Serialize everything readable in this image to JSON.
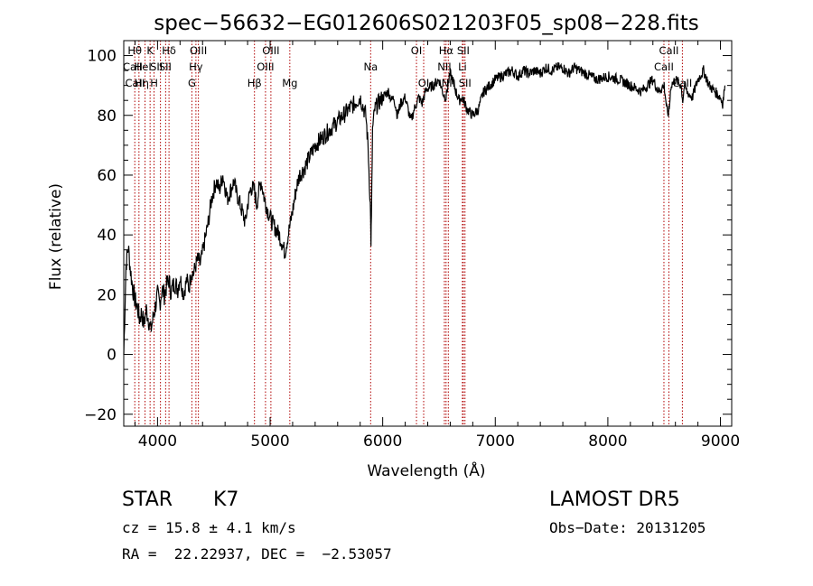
{
  "chart_data": {
    "type": "line",
    "title": "spec−56632−EG012606S021203F05_sp08−228.fits",
    "xlabel": "Wavelength (Å)",
    "ylabel": "Flux (relative)",
    "xlim": [
      3700,
      9100
    ],
    "ylim": [
      -24,
      105
    ],
    "xticks": [
      4000,
      5000,
      6000,
      7000,
      8000,
      9000
    ],
    "yticks": [
      -20,
      0,
      20,
      40,
      60,
      80,
      100
    ],
    "grid": false,
    "series": [
      {
        "x": [
          3700,
          3720,
          3740,
          3760,
          3780,
          3800,
          3820,
          3840,
          3860,
          3880,
          3900,
          3920,
          3940,
          3960,
          3980,
          4000,
          4020,
          4040,
          4060,
          4080,
          4100,
          4120,
          4150,
          4180,
          4200,
          4230,
          4260,
          4280,
          4300,
          4320,
          4340,
          4360,
          4380,
          4400,
          4420,
          4450,
          4480,
          4500,
          4520,
          4550,
          4580,
          4600,
          4620,
          4650,
          4680,
          4700,
          4720,
          4750,
          4780,
          4800,
          4830,
          4860,
          4880,
          4900,
          4920,
          4950,
          4980,
          5000,
          5020,
          5050,
          5080,
          5100,
          5130,
          5160,
          5180,
          5200,
          5230,
          5260,
          5300,
          5350,
          5400,
          5450,
          5500,
          5550,
          5600,
          5650,
          5700,
          5750,
          5800,
          5850,
          5870,
          5890,
          5896,
          5900,
          5910,
          5930,
          5960,
          6000,
          6050,
          6080,
          6100,
          6130,
          6160,
          6200,
          6250,
          6280,
          6300,
          6320,
          6350,
          6380,
          6400,
          6450,
          6500,
          6540,
          6563,
          6580,
          6600,
          6620,
          6650,
          6680,
          6700,
          6720,
          6750,
          6800,
          6850,
          6880,
          6900,
          6950,
          7000,
          7050,
          7100,
          7150,
          7200,
          7250,
          7300,
          7350,
          7400,
          7450,
          7500,
          7550,
          7600,
          7650,
          7700,
          7800,
          7900,
          8000,
          8100,
          8200,
          8300,
          8400,
          8450,
          8500,
          8530,
          8545,
          8560,
          8600,
          8650,
          8665,
          8680,
          8700,
          8750,
          8800,
          8850,
          8900,
          8950,
          9000,
          9020,
          9040
        ],
        "y": [
          0,
          30,
          36,
          28,
          22,
          18,
          16,
          12,
          14,
          10,
          15,
          12,
          8,
          12,
          16,
          20,
          17,
          22,
          20,
          23,
          25,
          21,
          24,
          22,
          26,
          20,
          25,
          22,
          28,
          27,
          30,
          32,
          30,
          34,
          38,
          44,
          52,
          55,
          58,
          55,
          60,
          56,
          52,
          55,
          58,
          54,
          52,
          48,
          44,
          50,
          56,
          55,
          50,
          55,
          58,
          52,
          48,
          46,
          44,
          42,
          40,
          38,
          34,
          40,
          44,
          48,
          55,
          60,
          62,
          66,
          70,
          72,
          74,
          76,
          78,
          80,
          82,
          84,
          86,
          80,
          70,
          50,
          38,
          45,
          75,
          82,
          84,
          86,
          88,
          85,
          86,
          80,
          84,
          86,
          78,
          82,
          84,
          86,
          84,
          88,
          89,
          90,
          92,
          87,
          86,
          90,
          94,
          92,
          88,
          85,
          86,
          85,
          82,
          80,
          82,
          86,
          88,
          90,
          92,
          93,
          94,
          95,
          93,
          95,
          94,
          95,
          94,
          96,
          95,
          96,
          96,
          94,
          96,
          94,
          92,
          93,
          92,
          90,
          88,
          92,
          88,
          90,
          80,
          82,
          90,
          92,
          90,
          85,
          90,
          88,
          86,
          92,
          95,
          90,
          88,
          86,
          84,
          90
        ],
        "note": ""
      }
    ],
    "spectral_lines": [
      {
        "w": 3798,
        "label": "Hθ",
        "row": 0
      },
      {
        "w": 3835,
        "label": "",
        "row": 0
      },
      {
        "w": 3889,
        "label": "",
        "row": 0
      },
      {
        "w": 3934,
        "label": "K",
        "row": 0
      },
      {
        "w": 3969,
        "label": "H",
        "row": 2
      },
      {
        "w": 4026,
        "label": "",
        "row": 0
      },
      {
        "w": 4072,
        "label": "",
        "row": 0
      },
      {
        "w": 4102,
        "label": "Hδ",
        "row": 0
      },
      {
        "w": 4305,
        "label": "G",
        "row": 2
      },
      {
        "w": 4341,
        "label": "Hγ",
        "row": 1
      },
      {
        "w": 4363,
        "label": "OIII",
        "row": 0
      },
      {
        "w": 4861,
        "label": "Hβ",
        "row": 2
      },
      {
        "w": 4959,
        "label": "OIII",
        "row": 1
      },
      {
        "w": 5007,
        "label": "OIII",
        "row": 0
      },
      {
        "w": 5175,
        "label": "Mg",
        "row": 2
      },
      {
        "w": 5893,
        "label": "Na",
        "row": 1
      },
      {
        "w": 6300,
        "label": "OI",
        "row": 0
      },
      {
        "w": 6364,
        "label": "OI",
        "row": 2
      },
      {
        "w": 6548,
        "label": "NII",
        "row": 1
      },
      {
        "w": 6563,
        "label": "Hα",
        "row": 0
      },
      {
        "w": 6583,
        "label": "NII",
        "row": 2
      },
      {
        "w": 6708,
        "label": "Li",
        "row": 1
      },
      {
        "w": 6716,
        "label": "SII",
        "row": 0
      },
      {
        "w": 6731,
        "label": "SII",
        "row": 2
      },
      {
        "w": 8498,
        "label": "CaII",
        "row": 1
      },
      {
        "w": 8542,
        "label": "CaII",
        "row": 0
      },
      {
        "w": 8662,
        "label": "CaII",
        "row": 2
      }
    ],
    "extra_labels": [
      {
        "w": 3780,
        "label": "CaII",
        "row": 1
      },
      {
        "w": 3800,
        "label": "CaII",
        "row": 2
      },
      {
        "w": 3860,
        "label": "Hη",
        "row": 2
      },
      {
        "w": 3870,
        "label": "HeI",
        "row": 1
      },
      {
        "w": 3990,
        "label": "SII",
        "row": 1
      },
      {
        "w": 4068,
        "label": "SII",
        "row": 1
      }
    ]
  },
  "info": {
    "class_label": "STAR",
    "subclass": "K7",
    "survey": "LAMOST DR5",
    "cz": "cz = 15.8 ± 4.1 km/s",
    "obs_date": "Obs−Date: 20131205",
    "radec": "RA =  22.22937, DEC =  −2.53057"
  },
  "colors": {
    "line_markers": "#b00000",
    "spectrum": "#000000"
  }
}
